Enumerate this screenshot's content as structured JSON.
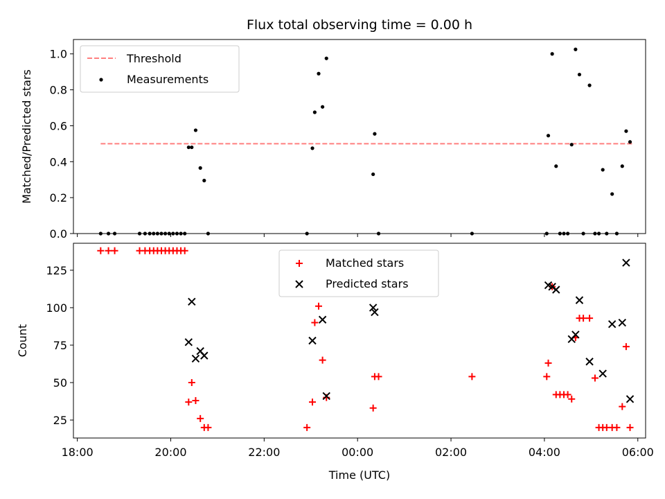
{
  "chart_data": [
    {
      "type": "scatter",
      "title": "Flux total observing time = 0.00 h",
      "ylabel": "Matched/Predicted stars",
      "xlabel": "",
      "ylim": [
        0,
        1.08
      ],
      "xlim": [
        "17:55",
        "06:10"
      ],
      "y_ticks": [
        0.0,
        0.2,
        0.4,
        0.6,
        0.8,
        1.0
      ],
      "y_tick_labels": [
        "0.0",
        "0.2",
        "0.4",
        "0.6",
        "0.8",
        "1.0"
      ],
      "x_ticks": [
        "18:00",
        "20:00",
        "22:00",
        "00:00",
        "02:00",
        "04:00",
        "06:00"
      ],
      "legend": {
        "placement": "upper-left",
        "entries": [
          "Threshold",
          "Measurements"
        ]
      },
      "threshold": {
        "name": "Threshold",
        "value": 0.5,
        "x_start": "18:30",
        "x_end": "05:55",
        "color": "#ff7f7f"
      },
      "series": [
        {
          "name": "Measurements",
          "color": "#000000",
          "points": [
            [
              "18:30",
              0
            ],
            [
              "18:40",
              0
            ],
            [
              "18:48",
              0
            ],
            [
              "19:20",
              0
            ],
            [
              "19:27",
              0
            ],
            [
              "19:33",
              0
            ],
            [
              "19:38",
              0
            ],
            [
              "19:43",
              0
            ],
            [
              "19:48",
              0
            ],
            [
              "19:53",
              0
            ],
            [
              "19:58",
              0
            ],
            [
              "20:03",
              0
            ],
            [
              "20:08",
              0
            ],
            [
              "20:13",
              0
            ],
            [
              "20:18",
              0
            ],
            [
              "20:23",
              0.48
            ],
            [
              "20:27",
              0.48
            ],
            [
              "20:32",
              0.575
            ],
            [
              "20:38",
              0.365
            ],
            [
              "20:43",
              0.295
            ],
            [
              "20:48",
              0
            ],
            [
              "22:55",
              0
            ],
            [
              "23:02",
              0.475
            ],
            [
              "23:05",
              0.675
            ],
            [
              "23:10",
              0.89
            ],
            [
              "23:15",
              0.705
            ],
            [
              "23:20",
              0.975
            ],
            [
              "00:20",
              0.33
            ],
            [
              "00:22",
              0.555
            ],
            [
              "00:27",
              0
            ],
            [
              "02:27",
              0
            ],
            [
              "04:03",
              0
            ],
            [
              "04:05",
              0.545
            ],
            [
              "04:10",
              1.0
            ],
            [
              "04:15",
              0.375
            ],
            [
              "04:20",
              0
            ],
            [
              "04:25",
              0
            ],
            [
              "04:30",
              0
            ],
            [
              "04:35",
              0.495
            ],
            [
              "04:40",
              1.025
            ],
            [
              "04:45",
              0.885
            ],
            [
              "04:50",
              0
            ],
            [
              "04:58",
              0.825
            ],
            [
              "05:05",
              0
            ],
            [
              "05:10",
              0
            ],
            [
              "05:15",
              0.355
            ],
            [
              "05:20",
              0
            ],
            [
              "05:27",
              0.22
            ],
            [
              "05:33",
              0
            ],
            [
              "05:40",
              0.375
            ],
            [
              "05:45",
              0.57
            ],
            [
              "05:50",
              0.51
            ]
          ]
        }
      ]
    },
    {
      "type": "scatter",
      "title": "",
      "ylabel": "Count",
      "xlabel": "Time (UTC)",
      "ylim": [
        13,
        143
      ],
      "xlim": [
        "17:55",
        "06:10"
      ],
      "y_ticks": [
        25,
        50,
        75,
        100,
        125
      ],
      "y_tick_labels": [
        "25",
        "50",
        "75",
        "100",
        "125"
      ],
      "x_ticks": [
        "18:00",
        "20:00",
        "22:00",
        "00:00",
        "02:00",
        "04:00",
        "06:00"
      ],
      "x_tick_labels": [
        "18:00",
        "20:00",
        "22:00",
        "00:00",
        "02:00",
        "04:00",
        "06:00"
      ],
      "legend": {
        "placement": "upper-center",
        "entries": [
          "Matched stars",
          "Predicted stars"
        ]
      },
      "series": [
        {
          "name": "Matched stars",
          "marker": "plus",
          "color": "#ff0000",
          "points": [
            [
              "18:30",
              138
            ],
            [
              "18:40",
              138
            ],
            [
              "18:48",
              138
            ],
            [
              "19:20",
              138
            ],
            [
              "19:27",
              138
            ],
            [
              "19:33",
              138
            ],
            [
              "19:38",
              138
            ],
            [
              "19:43",
              138
            ],
            [
              "19:48",
              138
            ],
            [
              "19:53",
              138
            ],
            [
              "19:58",
              138
            ],
            [
              "20:03",
              138
            ],
            [
              "20:08",
              138
            ],
            [
              "20:13",
              138
            ],
            [
              "20:18",
              138
            ],
            [
              "20:23",
              37
            ],
            [
              "20:27",
              50
            ],
            [
              "20:32",
              38
            ],
            [
              "20:38",
              26
            ],
            [
              "20:43",
              20
            ],
            [
              "20:48",
              20
            ],
            [
              "22:55",
              20
            ],
            [
              "23:02",
              37
            ],
            [
              "23:05",
              90
            ],
            [
              "23:10",
              101
            ],
            [
              "23:15",
              65
            ],
            [
              "23:20",
              40
            ],
            [
              "00:20",
              33
            ],
            [
              "00:22",
              54
            ],
            [
              "00:27",
              54
            ],
            [
              "02:27",
              54
            ],
            [
              "04:03",
              54
            ],
            [
              "04:05",
              63
            ],
            [
              "04:10",
              114
            ],
            [
              "04:15",
              42
            ],
            [
              "04:20",
              42
            ],
            [
              "04:25",
              42
            ],
            [
              "04:30",
              42
            ],
            [
              "04:35",
              39
            ],
            [
              "04:40",
              80
            ],
            [
              "04:45",
              93
            ],
            [
              "04:50",
              93
            ],
            [
              "04:58",
              93
            ],
            [
              "05:05",
              53
            ],
            [
              "05:10",
              20
            ],
            [
              "05:15",
              20
            ],
            [
              "05:20",
              20
            ],
            [
              "05:27",
              20
            ],
            [
              "05:33",
              20
            ],
            [
              "05:40",
              34
            ],
            [
              "05:45",
              74
            ],
            [
              "05:50",
              20
            ]
          ]
        },
        {
          "name": "Predicted stars",
          "marker": "x",
          "color": "#000000",
          "points": [
            [
              "20:23",
              77
            ],
            [
              "20:27",
              104
            ],
            [
              "20:32",
              66
            ],
            [
              "20:38",
              71
            ],
            [
              "20:43",
              68
            ],
            [
              "23:02",
              78
            ],
            [
              "23:15",
              92
            ],
            [
              "23:20",
              41
            ],
            [
              "00:20",
              100
            ],
            [
              "00:22",
              97
            ],
            [
              "04:05",
              115
            ],
            [
              "04:10",
              114
            ],
            [
              "04:15",
              112
            ],
            [
              "04:35",
              79
            ],
            [
              "04:40",
              82
            ],
            [
              "04:45",
              105
            ],
            [
              "04:58",
              64
            ],
            [
              "05:15",
              56
            ],
            [
              "05:27",
              89
            ],
            [
              "05:40",
              90
            ],
            [
              "05:45",
              130
            ],
            [
              "05:50",
              39
            ]
          ]
        }
      ]
    }
  ]
}
